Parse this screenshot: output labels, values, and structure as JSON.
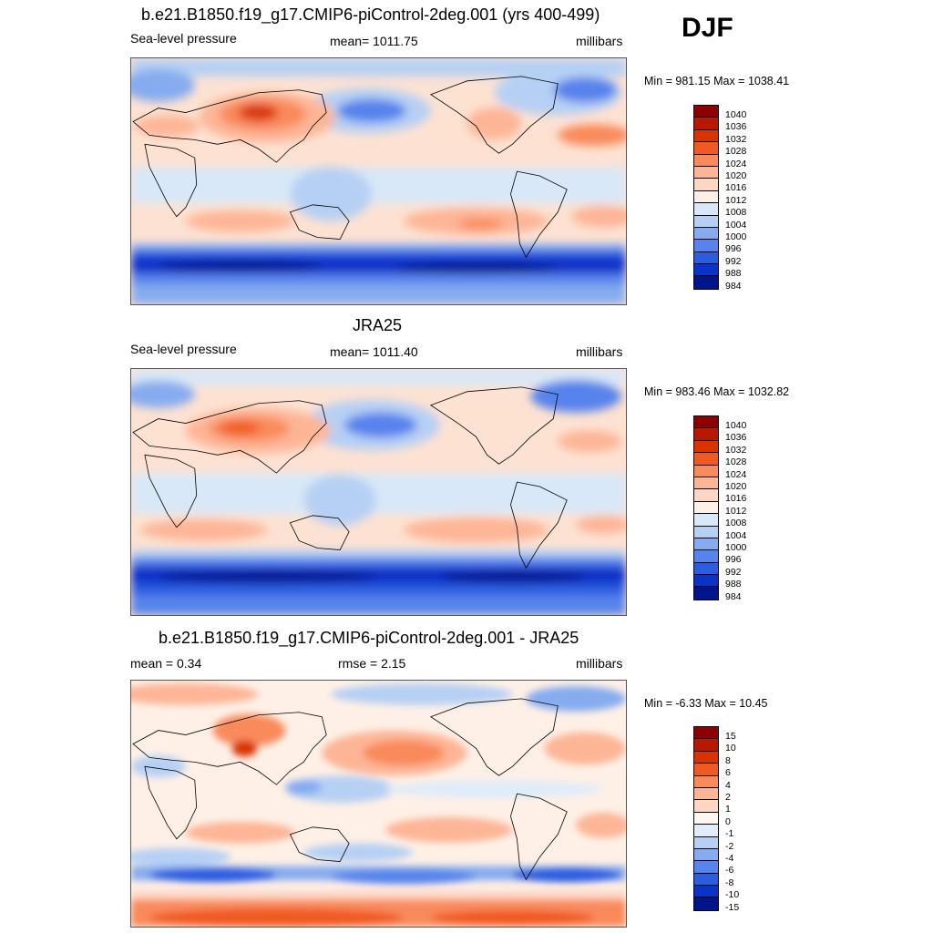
{
  "season": "DJF",
  "panels": [
    {
      "title": "b.e21.B1850.f19_g17.CMIP6-piControl-2deg.001 (yrs 400-499)",
      "left": "Sea-level pressure",
      "center": "mean= 1011.75",
      "right": "millibars",
      "minmax": "Min = 981.15 Max = 1038.41",
      "colorbar": {
        "labels": [
          "1040",
          "1036",
          "1032",
          "1028",
          "1024",
          "1020",
          "1016",
          "1012",
          "1008",
          "1004",
          "1000",
          "996",
          "992",
          "988",
          "984"
        ],
        "colors": [
          "#8b0000",
          "#b81800",
          "#d93400",
          "#f05a22",
          "#f98a5c",
          "#fdb596",
          "#fdd6c4",
          "#fef0e6",
          "#d8e8f8",
          "#b6d0f4",
          "#86acef",
          "#5683ec",
          "#2a5de0",
          "#0a33c8",
          "#00148c"
        ]
      }
    },
    {
      "title": "JRA25",
      "left": "Sea-level pressure",
      "center": "mean= 1011.40",
      "right": "millibars",
      "minmax": "Min = 983.46 Max = 1032.82",
      "colorbar": {
        "labels": [
          "1040",
          "1036",
          "1032",
          "1028",
          "1024",
          "1020",
          "1016",
          "1012",
          "1008",
          "1004",
          "1000",
          "996",
          "992",
          "988",
          "984"
        ],
        "colors": [
          "#8b0000",
          "#b81800",
          "#d93400",
          "#f05a22",
          "#f98a5c",
          "#fdb596",
          "#fdd6c4",
          "#fef0e6",
          "#d8e8f8",
          "#b6d0f4",
          "#86acef",
          "#5683ec",
          "#2a5de0",
          "#0a33c8",
          "#00148c"
        ]
      }
    },
    {
      "title": "b.e21.B1850.f19_g17.CMIP6-piControl-2deg.001 - JRA25",
      "left": "mean =   0.34",
      "center": "rmse =   2.15",
      "right": "millibars",
      "minmax": "Min =  -6.33 Max =  10.45",
      "colorbar": {
        "labels": [
          "15",
          "10",
          "8",
          "6",
          "4",
          "2",
          "1",
          "0",
          "-1",
          "-2",
          "-4",
          "-6",
          "-8",
          "-10",
          "-15"
        ],
        "colors": [
          "#8b0000",
          "#b81800",
          "#d93400",
          "#f05a22",
          "#f98a5c",
          "#fdb596",
          "#fdd6c4",
          "#fef6f0",
          "#e0ecf8",
          "#b6d0f4",
          "#86acef",
          "#5683ec",
          "#2a5de0",
          "#0a33c8",
          "#00148c"
        ]
      }
    }
  ]
}
